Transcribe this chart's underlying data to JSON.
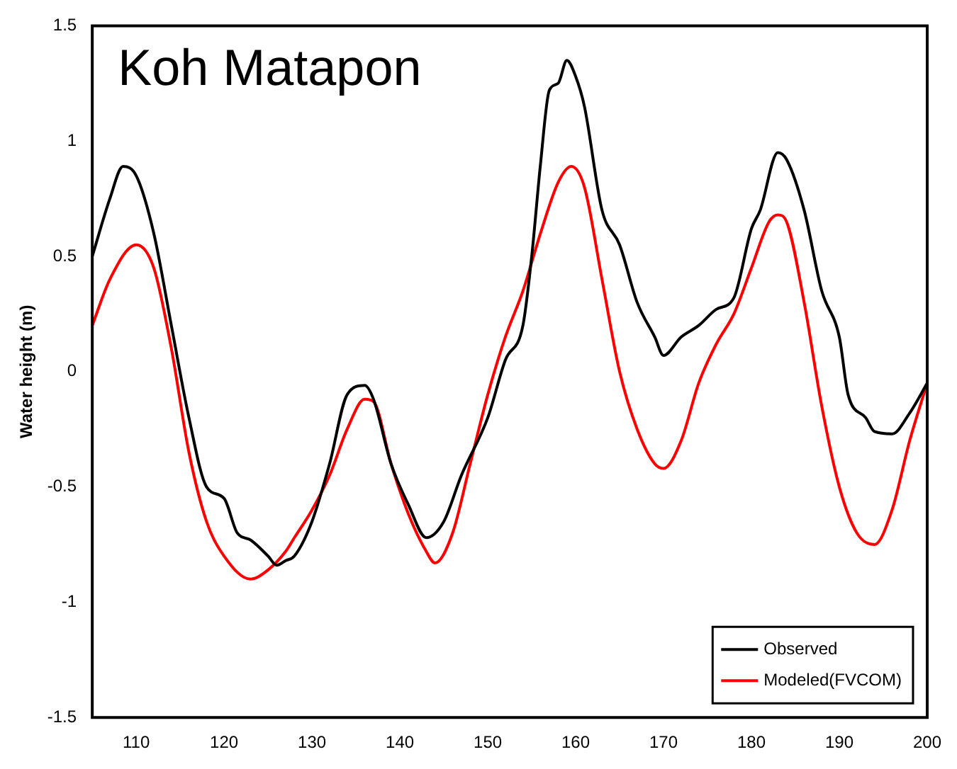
{
  "chart_data": {
    "type": "line",
    "title": "Koh Matapon",
    "ylabel": "Water height (m)",
    "xlim": [
      105,
      200
    ],
    "xticks": [
      110,
      120,
      130,
      140,
      150,
      160,
      170,
      180,
      190,
      200
    ],
    "ylim": [
      -1.5,
      1.5
    ],
    "yticks": [
      -1.5,
      -1,
      -0.5,
      0,
      0.5,
      1,
      1.5
    ],
    "grid": false,
    "legend": "bottom right",
    "marker": "none",
    "line_style": "solid",
    "series": [
      {
        "name": "Observed",
        "color": "#000000",
        "x": [
          105,
          107,
          108.5,
          110,
          112,
          114,
          116,
          118,
          120,
          121.5,
          123,
          125,
          126,
          127,
          128,
          130,
          132,
          134,
          136,
          137,
          139,
          141,
          143,
          145,
          147,
          150,
          152,
          154,
          155,
          156,
          157,
          158,
          159,
          160,
          161,
          163,
          165,
          167,
          169,
          170,
          172,
          174,
          176,
          178,
          180,
          181,
          183,
          184,
          186,
          188,
          190,
          191,
          193,
          194,
          196,
          198,
          200
        ],
        "values": [
          0.5,
          0.75,
          0.89,
          0.85,
          0.6,
          0.2,
          -0.2,
          -0.5,
          -0.55,
          -0.7,
          -0.73,
          -0.8,
          -0.84,
          -0.82,
          -0.8,
          -0.65,
          -0.4,
          -0.1,
          -0.06,
          -0.12,
          -0.4,
          -0.58,
          -0.72,
          -0.65,
          -0.45,
          -0.2,
          0.05,
          0.2,
          0.5,
          0.9,
          1.22,
          1.25,
          1.35,
          1.28,
          1.15,
          0.7,
          0.55,
          0.3,
          0.15,
          0.07,
          0.15,
          0.2,
          0.27,
          0.32,
          0.62,
          0.7,
          0.95,
          0.92,
          0.7,
          0.35,
          0.15,
          -0.1,
          -0.2,
          -0.26,
          -0.27,
          -0.18,
          -0.05
        ]
      },
      {
        "name": "Modeled(FVCOM)",
        "color": "#ff0000",
        "x": [
          105,
          107,
          110,
          112,
          114,
          116,
          118,
          120,
          123,
          125,
          127,
          128,
          130,
          132,
          134,
          136,
          137,
          139,
          141,
          143,
          144,
          146,
          148,
          150,
          152,
          154,
          156,
          158,
          159.5,
          161,
          163,
          165,
          167,
          169,
          170,
          172,
          174,
          176,
          178,
          180,
          182,
          183,
          184,
          186,
          188,
          190,
          192,
          194,
          196,
          198,
          200
        ],
        "values": [
          0.2,
          0.4,
          0.55,
          0.45,
          0.1,
          -0.35,
          -0.65,
          -0.8,
          -0.9,
          -0.86,
          -0.78,
          -0.72,
          -0.6,
          -0.45,
          -0.25,
          -0.12,
          -0.13,
          -0.4,
          -0.62,
          -0.78,
          -0.83,
          -0.7,
          -0.4,
          -0.1,
          0.15,
          0.35,
          0.6,
          0.82,
          0.89,
          0.8,
          0.4,
          0,
          -0.25,
          -0.4,
          -0.42,
          -0.3,
          -0.05,
          0.12,
          0.25,
          0.45,
          0.65,
          0.68,
          0.65,
          0.3,
          -0.15,
          -0.5,
          -0.7,
          -0.75,
          -0.6,
          -0.3,
          -0.05
        ]
      }
    ]
  }
}
